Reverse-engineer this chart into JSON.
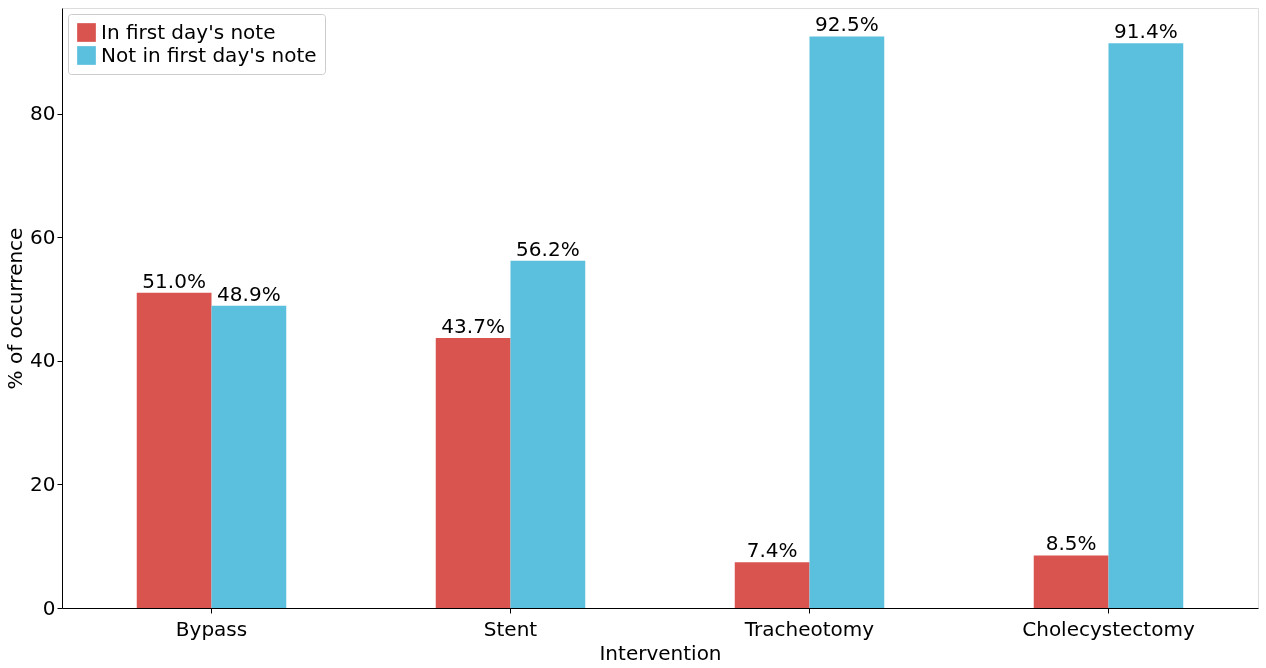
{
  "chart_data": {
    "type": "bar",
    "xlabel": "Intervention",
    "ylabel": "% of occurrence",
    "categories": [
      "Bypass",
      "Stent",
      "Tracheotomy",
      "Cholecystectomy"
    ],
    "series": [
      {
        "name": "In first day's note",
        "color": "#d9534f",
        "values": [
          51.0,
          43.7,
          7.4,
          8.5
        ],
        "value_labels": [
          "51.0%",
          "43.7%",
          "7.4%",
          "8.5%"
        ]
      },
      {
        "name": "Not in first day's note",
        "color": "#5bc0de",
        "values": [
          48.9,
          56.2,
          92.5,
          91.4
        ],
        "value_labels": [
          "48.9%",
          "56.2%",
          "92.5%",
          "91.4%"
        ]
      }
    ],
    "ylim": [
      0,
      97.1
    ],
    "yticks": [
      0,
      20,
      40,
      60,
      80
    ],
    "grid": false,
    "legend": "top left"
  }
}
